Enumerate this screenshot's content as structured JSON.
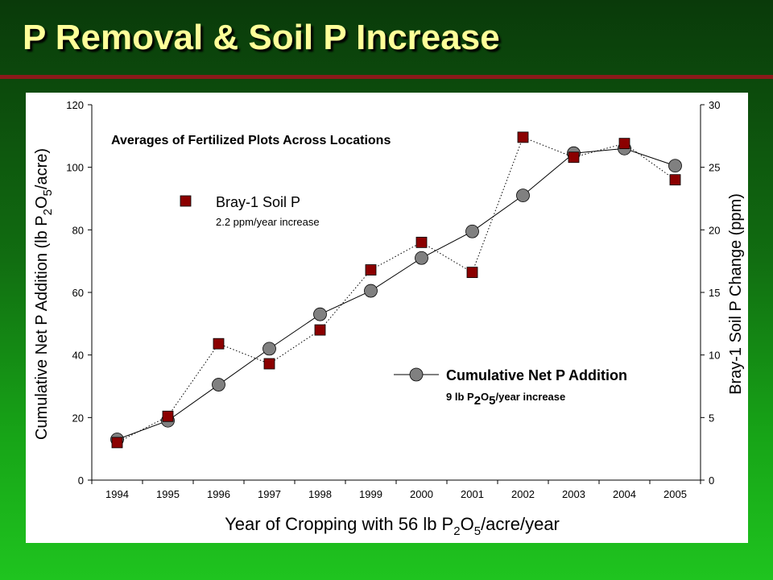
{
  "slide": {
    "title": "P Removal & Soil P Increase"
  },
  "chart_data": {
    "type": "line",
    "subtitle": "Averages of Fertilized Plots Across Locations",
    "categories": [
      "1994",
      "1995",
      "1996",
      "1997",
      "1998",
      "1999",
      "2000",
      "2001",
      "2002",
      "2003",
      "2004",
      "2005"
    ],
    "x_axis": {
      "label_parts": [
        "Year of Cropping with 56 lb P",
        "2",
        "O",
        "5",
        "/acre/year"
      ]
    },
    "y_left": {
      "label_parts": [
        "Cumulative Net P Addition (lb P",
        "2",
        "O",
        "5",
        "/acre)"
      ],
      "ylim": [
        0,
        120
      ],
      "ticks": [
        "0",
        "20",
        "40",
        "60",
        "80",
        "100",
        "120"
      ]
    },
    "y_right": {
      "label": "Bray-1 Soil P Change (ppm)",
      "ylim": [
        0,
        30
      ],
      "ticks": [
        "0",
        "5",
        "10",
        "15",
        "20",
        "25",
        "30"
      ]
    },
    "grid": false,
    "series": [
      {
        "name": "Cumulative Net P Addition",
        "note_parts": [
          "9 lb P",
          "2",
          "O",
          "5",
          "/year increase"
        ],
        "axis": "left",
        "marker": "circle",
        "line": "solid",
        "color": "#808080",
        "values": [
          13,
          19,
          30.5,
          42,
          53,
          60.5,
          71,
          79.5,
          91,
          104.5,
          106,
          100.5
        ]
      },
      {
        "name": "Bray-1 Soil P",
        "note": "2.2 ppm/year increase",
        "axis": "right",
        "marker": "square",
        "line": "dotted",
        "color": "#8b0000",
        "values": [
          3,
          5.1,
          10.9,
          9.3,
          12,
          16.8,
          19,
          16.6,
          27.4,
          25.8,
          26.9,
          24
        ]
      }
    ]
  }
}
